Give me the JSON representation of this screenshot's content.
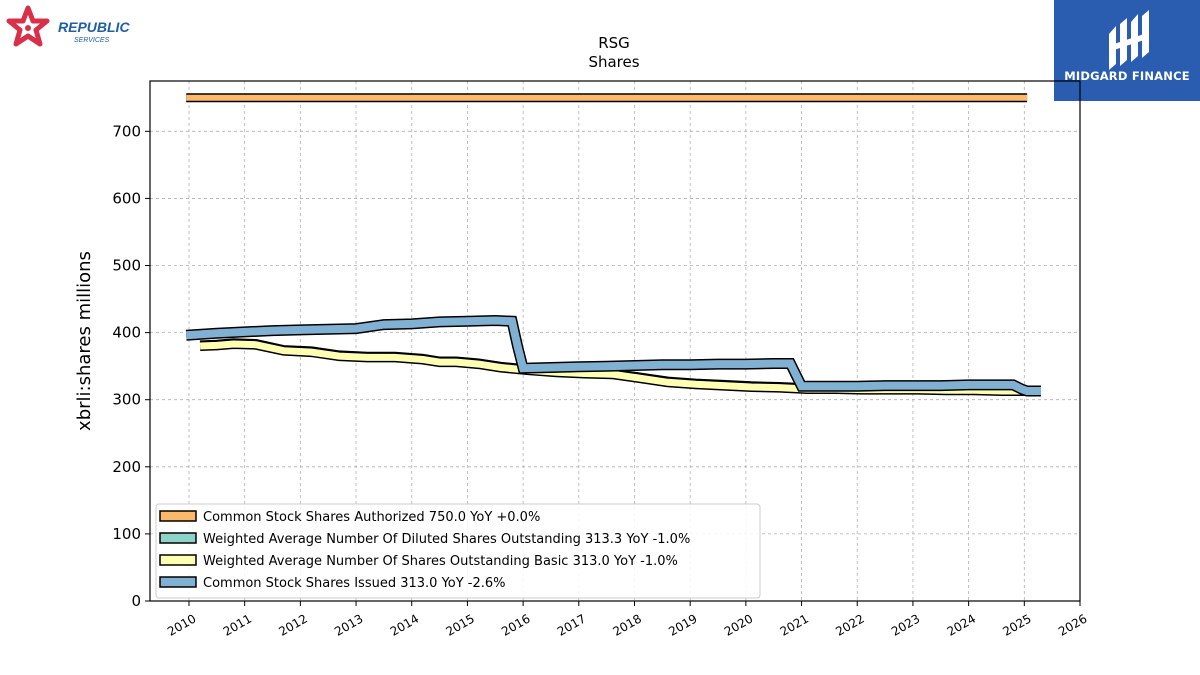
{
  "brand": {
    "left_logo_name": "REPUBLIC",
    "left_logo_sub": "SERVICES",
    "left_logo_color": "#1f5fa8",
    "left_star_color": "#d9304a",
    "right_logo_name": "MIDGARD FINANCE",
    "right_logo_bg": "#2a5db0"
  },
  "chart_data": {
    "type": "line",
    "title": "RSG",
    "subtitle": "Shares",
    "xlabel": "",
    "ylabel": "xbrli:shares millions",
    "xlim": [
      2009.3,
      2026.0
    ],
    "ylim": [
      0,
      775
    ],
    "x_ticks": [
      2010,
      2011,
      2012,
      2013,
      2014,
      2015,
      2016,
      2017,
      2018,
      2019,
      2020,
      2021,
      2022,
      2023,
      2024,
      2025,
      2026
    ],
    "y_ticks": [
      0,
      100,
      200,
      300,
      400,
      500,
      600,
      700
    ],
    "grid": true,
    "legend_position": "lower-left",
    "series": [
      {
        "name": "Common Stock Shares Authorized  750.0 YoY +0.0%",
        "color": "#fdb96b",
        "width": 6,
        "x": [
          2009.95,
          2025.05
        ],
        "y": [
          750,
          750
        ]
      },
      {
        "name": "Weighted Average Number Of Diluted Shares Outstanding  313.3 YoY -1.0%",
        "color": "#8dd3c7",
        "width": 7,
        "x": [
          2010.2,
          2010.5,
          2010.8,
          2011.2,
          2011.7,
          2012.2,
          2012.7,
          2013.2,
          2013.7,
          2014.2,
          2014.5,
          2014.8,
          2015.2,
          2015.6,
          2016.1,
          2016.6,
          2017.1,
          2017.6,
          2018.1,
          2018.6,
          2019.1,
          2019.6,
          2020.1,
          2020.6,
          2021.1,
          2021.6,
          2022.1,
          2022.6,
          2023.1,
          2023.6,
          2024.1,
          2024.6,
          2025.05
        ],
        "y": [
          381,
          382,
          384,
          383,
          374,
          372,
          366,
          364,
          364,
          361,
          357,
          357,
          354,
          349,
          345,
          342,
          340,
          339,
          333,
          327,
          324,
          322,
          320,
          319,
          317,
          317,
          316,
          316,
          316,
          315,
          315,
          314,
          313
        ]
      },
      {
        "name": "Weighted Average Number Of Shares Outstanding Basic  313.0 YoY -1.0%",
        "color": "#ffffb3",
        "width": 7,
        "x": [
          2010.2,
          2010.5,
          2010.8,
          2011.2,
          2011.7,
          2012.2,
          2012.7,
          2013.2,
          2013.7,
          2014.2,
          2014.5,
          2014.8,
          2015.2,
          2015.6,
          2016.1,
          2016.6,
          2017.1,
          2017.6,
          2018.1,
          2018.6,
          2019.1,
          2019.6,
          2020.1,
          2020.6,
          2021.1,
          2021.6,
          2022.1,
          2022.6,
          2023.1,
          2023.6,
          2024.1,
          2024.6,
          2025.05
        ],
        "y": [
          380,
          381,
          383,
          382,
          373,
          371,
          365,
          363,
          363,
          360,
          356,
          356,
          353,
          348,
          344,
          341,
          339,
          338,
          332,
          326,
          323,
          321,
          319,
          318,
          316,
          316,
          315,
          315,
          315,
          314,
          314,
          313,
          313
        ]
      },
      {
        "name": "Common Stock Shares Issued  313.0 YoY -2.6%",
        "color": "#80b1d3",
        "width": 8,
        "x": [
          2009.95,
          2010.5,
          2011.0,
          2011.5,
          2012.0,
          2012.5,
          2013.0,
          2013.5,
          2014.0,
          2014.5,
          2015.0,
          2015.5,
          2015.8,
          2015.9,
          2016.0,
          2016.5,
          2017.0,
          2017.5,
          2018.0,
          2018.5,
          2019.0,
          2019.5,
          2020.0,
          2020.5,
          2020.8,
          2020.9,
          2021.0,
          2021.5,
          2022.0,
          2022.5,
          2023.0,
          2023.5,
          2024.0,
          2024.5,
          2024.8,
          2024.95,
          2025.05,
          2025.3
        ],
        "y": [
          396,
          399,
          401,
          403,
          404,
          405,
          406,
          412,
          413,
          416,
          417,
          418,
          417,
          380,
          347,
          348,
          349,
          350,
          351,
          352,
          352,
          353,
          353,
          354,
          354,
          337,
          320,
          320,
          320,
          321,
          321,
          321,
          322,
          322,
          322,
          316,
          313,
          313
        ]
      }
    ]
  }
}
